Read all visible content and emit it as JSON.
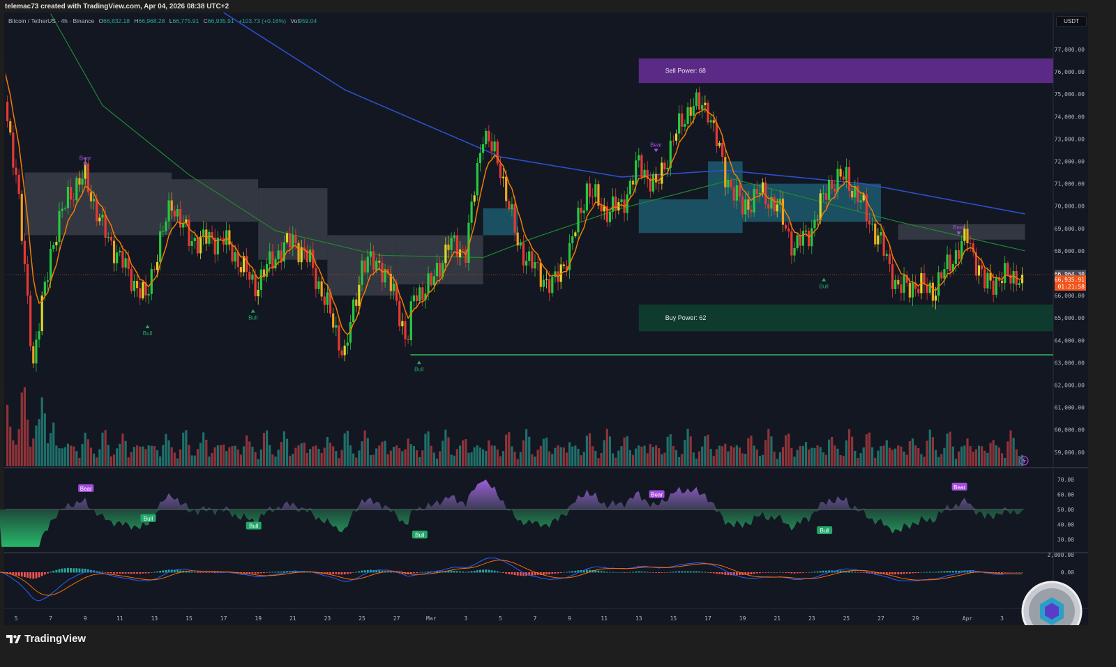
{
  "header": {
    "caption": "telemac73 created with TradingView.com, Apr 04, 2026 08:38 UTC+2"
  },
  "legend": {
    "symbol": "Bitcoin / TetherUS · 4h · Binance",
    "o_label": "O",
    "o": "66,832.18",
    "h_label": "H",
    "h": "66,968.28",
    "l_label": "L",
    "l": "66,775.91",
    "c_label": "C",
    "c": "66,935.91",
    "change": "+103.73 (+0.16%)",
    "vol_label": "Vol",
    "vol": "959.04"
  },
  "price_axis": {
    "unit": "USDT",
    "ticks": [
      "77,000.00",
      "76,000.00",
      "75,000.00",
      "74,000.00",
      "73,000.00",
      "72,000.00",
      "71,000.00",
      "70,000.00",
      "69,000.00",
      "68,000.00",
      "67,000.00",
      "66,000.00",
      "65,000.00",
      "64,000.00",
      "63,000.00",
      "62,000.00",
      "61,000.00",
      "60,000.00",
      "59,000.00"
    ],
    "tick_values": [
      77000,
      76000,
      75000,
      74000,
      73000,
      72000,
      71000,
      70000,
      69000,
      68000,
      67000,
      66000,
      65000,
      64000,
      63000,
      62000,
      61000,
      60000,
      59000
    ],
    "bid_label": "66,964.30",
    "bid_value": 66964.3,
    "last_label": "66,935.91",
    "last_value": 66935.91,
    "countdown": "01:21:58"
  },
  "rsi_axis": {
    "ticks": [
      "70.00",
      "60.00",
      "50.00",
      "40.00",
      "30.00"
    ],
    "tick_values": [
      70,
      60,
      50,
      40,
      30
    ]
  },
  "macd_axis": {
    "ticks": [
      "2,000.00",
      "0.00"
    ],
    "tick_values": [
      2000,
      0
    ]
  },
  "time_axis": {
    "ticks": [
      {
        "label": "5",
        "date": "Feb 5"
      },
      {
        "label": "7",
        "date": "Feb 7"
      },
      {
        "label": "9",
        "date": "Feb 9"
      },
      {
        "label": "11",
        "date": "Feb 11"
      },
      {
        "label": "13",
        "date": "Feb 13"
      },
      {
        "label": "15",
        "date": "Feb 15"
      },
      {
        "label": "17",
        "date": "Feb 17"
      },
      {
        "label": "19",
        "date": "Feb 19"
      },
      {
        "label": "21",
        "date": "Feb 21"
      },
      {
        "label": "23",
        "date": "Feb 23"
      },
      {
        "label": "25",
        "date": "Feb 25"
      },
      {
        "label": "27",
        "date": "Feb 27"
      },
      {
        "label": "Mar",
        "date": "Mar 1"
      },
      {
        "label": "3",
        "date": "Mar 3"
      },
      {
        "label": "5",
        "date": "Mar 5"
      },
      {
        "label": "7",
        "date": "Mar 7"
      },
      {
        "label": "9",
        "date": "Mar 9"
      },
      {
        "label": "11",
        "date": "Mar 11"
      },
      {
        "label": "13",
        "date": "Mar 13"
      },
      {
        "label": "15",
        "date": "Mar 15"
      },
      {
        "label": "17",
        "date": "Mar 17"
      },
      {
        "label": "19",
        "date": "Mar 19"
      },
      {
        "label": "21",
        "date": "Mar 21"
      },
      {
        "label": "23",
        "date": "Mar 23"
      },
      {
        "label": "25",
        "date": "Mar 25"
      },
      {
        "label": "27",
        "date": "Mar 27"
      },
      {
        "label": "29",
        "date": "Mar 29"
      },
      {
        "label": "Apr",
        "date": "Apr 1"
      },
      {
        "label": "3",
        "date": "Apr 3"
      }
    ]
  },
  "zones": {
    "sell": {
      "label": "Sell Power: 68",
      "start": "Mar 13",
      "top": 76600,
      "bottom": 75500,
      "color": "#5b2a86"
    },
    "buy": {
      "label": "Buy Power: 62",
      "start": "Mar 13",
      "top": 65600,
      "bottom": 64400,
      "color": "#0e3b2e"
    },
    "support": {
      "start": "Feb 27.8",
      "price": 63350,
      "color": "#2e9e55"
    }
  },
  "signals": [
    {
      "type": "Bear",
      "date": "Feb 9",
      "price": 71900
    },
    {
      "type": "Bull",
      "date": "Feb 12.6",
      "price": 64600
    },
    {
      "type": "Bull",
      "date": "Feb 18.7",
      "price": 65300
    },
    {
      "type": "Bull",
      "date": "Feb 28.3",
      "price": 63000
    },
    {
      "type": "Bear",
      "date": "Mar 14",
      "price": 72500
    },
    {
      "type": "Bull",
      "date": "Mar 23.7",
      "price": 66700
    },
    {
      "type": "Bear",
      "date": "Mar 31.5",
      "price": 68800
    }
  ],
  "rsi_signals": [
    {
      "type": "Bear",
      "date": "Feb 9",
      "value": 64
    },
    {
      "type": "Bull",
      "date": "Feb 12.6",
      "value": 44
    },
    {
      "type": "Bull",
      "date": "Feb 18.7",
      "value": 39
    },
    {
      "type": "Bull",
      "date": "Feb 28.3",
      "value": 33
    },
    {
      "type": "Bear",
      "date": "Mar 14",
      "value": 60
    },
    {
      "type": "Bull",
      "date": "Mar 23.7",
      "value": 36
    },
    {
      "type": "Bear",
      "date": "Mar 31.5",
      "value": 65
    }
  ],
  "colors": {
    "bg": "#131722",
    "up": "#26c940",
    "down": "#e53935",
    "ema": "#f57c00",
    "ma_long": "#2b50c8",
    "ma_mid": "#1f8a2e",
    "cloud_gray": "#3a3d47",
    "cloud_teal": "#1d5a6e",
    "vol_up": "#1f6f6a",
    "vol_down": "#8f3339",
    "rsi_up": "#9c5fd6",
    "rsi_down": "#27b86a",
    "last": "#f2541b",
    "bear": "#a64de0",
    "bull": "#22a66a"
  },
  "branding": {
    "logo": "TradingView"
  },
  "chart_data": {
    "type": "candlestick",
    "symbol": "BTCUSDT",
    "timeframe": "4h",
    "exchange": "Binance",
    "ylim": [
      58500,
      78000
    ],
    "close": [
      [
        "Feb 4",
        76600
      ],
      [
        "Feb 5",
        71400
      ],
      [
        "Feb 6",
        63000
      ],
      [
        "Feb 7",
        68000
      ],
      [
        "Feb 8",
        70500
      ],
      [
        "Feb 9",
        71300
      ],
      [
        "Feb 10",
        69000
      ],
      [
        "Feb 11.5",
        67000
      ],
      [
        "Feb 12.5",
        65800
      ],
      [
        "Feb 13",
        67500
      ],
      [
        "Feb 14",
        70200
      ],
      [
        "Feb 15",
        68500
      ],
      [
        "Feb 17",
        68500
      ],
      [
        "Feb 18",
        67400
      ],
      [
        "Feb 18.8",
        66400
      ],
      [
        "Feb 20",
        67800
      ],
      [
        "Feb 21",
        68500
      ],
      [
        "Feb 22",
        67500
      ],
      [
        "Feb 23",
        65500
      ],
      [
        "Feb 24",
        63300
      ],
      [
        "Feb 25",
        67400
      ],
      [
        "Feb 26",
        67500
      ],
      [
        "Feb 27",
        65800
      ],
      [
        "Feb 27.6",
        63800
      ],
      [
        "Feb 28",
        66000
      ],
      [
        "Mar 1",
        66500
      ],
      [
        "Mar 2",
        68300
      ],
      [
        "Mar 3",
        68000
      ],
      [
        "Mar 4",
        73400
      ],
      [
        "Mar 5",
        71700
      ],
      [
        "Mar 6",
        68300
      ],
      [
        "Mar 7",
        67200
      ],
      [
        "Mar 8",
        66400
      ],
      [
        "Mar 9",
        68000
      ],
      [
        "Mar 10",
        70800
      ],
      [
        "Mar 11",
        69800
      ],
      [
        "Mar 12",
        70000
      ],
      [
        "Mar 13",
        71900
      ],
      [
        "Mar 14",
        70800
      ],
      [
        "Mar 15",
        73000
      ],
      [
        "Mar 16",
        74500
      ],
      [
        "Mar 17",
        74400
      ],
      [
        "Mar 18",
        71400
      ],
      [
        "Mar 19",
        69900
      ],
      [
        "Mar 20",
        70600
      ],
      [
        "Mar 21",
        70000
      ],
      [
        "Mar 22",
        68100
      ],
      [
        "Mar 23",
        69000
      ],
      [
        "Mar 24",
        71000
      ],
      [
        "Mar 25",
        71300
      ],
      [
        "Mar 26",
        69900
      ],
      [
        "Mar 27",
        68300
      ],
      [
        "Mar 28",
        66300
      ],
      [
        "Mar 29",
        66500
      ],
      [
        "Mar 30",
        66200
      ],
      [
        "Mar 31",
        67500
      ],
      [
        "Apr 1",
        68600
      ],
      [
        "Apr 2",
        66500
      ],
      [
        "Apr 3",
        66800
      ],
      [
        "Apr 4.33",
        66935.91
      ]
    ],
    "ma_long": [
      [
        "Feb 17",
        78650
      ],
      [
        "Feb 24",
        75200
      ],
      [
        "Mar 5",
        72200
      ],
      [
        "Mar 12",
        71300
      ],
      [
        "Mar 18",
        71600
      ],
      [
        "Mar 26",
        71000
      ],
      [
        "Apr 4.33",
        69650
      ]
    ],
    "ma_mid": [
      [
        "Feb 7",
        78600
      ],
      [
        "Feb 10",
        74500
      ],
      [
        "Feb 15",
        71400
      ],
      [
        "Feb 20",
        68900
      ],
      [
        "Feb 26",
        67800
      ],
      [
        "Mar 4",
        67700
      ],
      [
        "Mar 7",
        68600
      ],
      [
        "Mar 12",
        69900
      ],
      [
        "Mar 18.5",
        71200
      ],
      [
        "Mar 22",
        70500
      ],
      [
        "Mar 28",
        69300
      ],
      [
        "Apr 4.33",
        68000
      ]
    ],
    "cloud": [
      {
        "color": "gray",
        "from": "Feb 5.5",
        "to": "Feb 14",
        "top": 71500,
        "bottom": 68700
      },
      {
        "color": "gray",
        "from": "Feb 14",
        "to": "Feb 19",
        "top": 71200,
        "bottom": 69300
      },
      {
        "color": "gray",
        "from": "Feb 19",
        "to": "Feb 23",
        "top": 70800,
        "bottom": 67600
      },
      {
        "color": "gray",
        "from": "Feb 23",
        "to": "Feb 27",
        "top": 68700,
        "bottom": 66000
      },
      {
        "color": "gray",
        "from": "Feb 27",
        "to": "Mar 4",
        "top": 68700,
        "bottom": 66500
      },
      {
        "color": "teal",
        "from": "Mar 4",
        "to": "Mar 6",
        "top": 69900,
        "bottom": 68700
      },
      {
        "color": "teal",
        "from": "Mar 13",
        "to": "Mar 17",
        "top": 70300,
        "bottom": 68800
      },
      {
        "color": "teal",
        "from": "Mar 17",
        "to": "Mar 19",
        "top": 72000,
        "bottom": 68800
      },
      {
        "color": "teal",
        "from": "Mar 19",
        "to": "Mar 27",
        "top": 71000,
        "bottom": 69300
      },
      {
        "color": "gray",
        "from": "Mar 28",
        "to": "Apr 4.33",
        "top": 69200,
        "bottom": 68500
      }
    ]
  }
}
